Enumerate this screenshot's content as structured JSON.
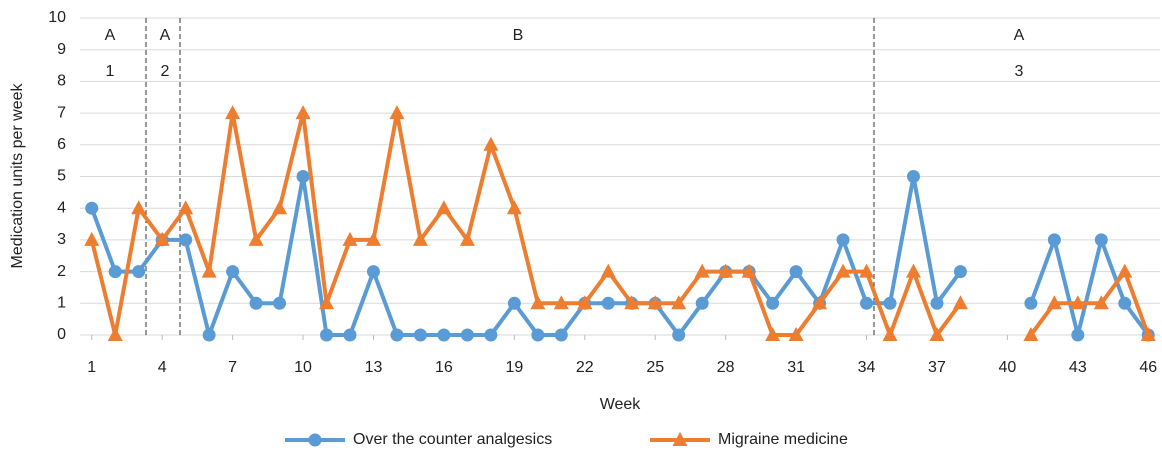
{
  "chart_data": {
    "type": "line",
    "xlabel": "Week",
    "ylabel": "Medication units per week",
    "x": [
      1,
      2,
      3,
      4,
      5,
      6,
      7,
      8,
      9,
      10,
      11,
      12,
      13,
      14,
      15,
      16,
      17,
      18,
      19,
      20,
      21,
      22,
      23,
      24,
      25,
      26,
      27,
      28,
      29,
      30,
      31,
      32,
      33,
      34,
      35,
      36,
      37,
      38,
      39,
      40,
      41,
      42,
      43,
      44,
      45,
      46
    ],
    "xlim": [
      0.5,
      46.5
    ],
    "xticks": [
      1,
      4,
      7,
      10,
      13,
      16,
      19,
      22,
      25,
      28,
      31,
      34,
      37,
      40,
      43,
      46
    ],
    "ylim": [
      0,
      10
    ],
    "yticks": [
      0,
      1,
      2,
      3,
      4,
      5,
      6,
      7,
      8,
      9,
      10
    ],
    "grid": true,
    "legend": "bottom",
    "series": [
      {
        "name": "Over the counter analgesics",
        "color": "#5b9bd5",
        "marker": "circle",
        "values": [
          4,
          2,
          2,
          3,
          3,
          0,
          2,
          1,
          1,
          5,
          0,
          0,
          2,
          0,
          0,
          0,
          0,
          0,
          1,
          0,
          0,
          1,
          1,
          1,
          1,
          0,
          1,
          2,
          2,
          1,
          2,
          1,
          3,
          1,
          1,
          5,
          1,
          2,
          null,
          null,
          1,
          3,
          0,
          3,
          1,
          0
        ]
      },
      {
        "name": "Migraine medicine",
        "color": "#ed7d31",
        "marker": "triangle",
        "values": [
          3,
          0,
          4,
          3,
          4,
          2,
          7,
          3,
          4,
          7,
          1,
          3,
          3,
          7,
          3,
          4,
          3,
          6,
          4,
          1,
          1,
          1,
          2,
          1,
          1,
          1,
          2,
          2,
          2,
          0,
          0,
          1,
          2,
          2,
          0,
          2,
          0,
          1,
          null,
          null,
          0,
          1,
          1,
          1,
          2,
          0
        ]
      }
    ],
    "phases": [
      {
        "label": "A",
        "number": "1"
      },
      {
        "label": "A",
        "number": "2"
      },
      {
        "label": "B"
      },
      {
        "label": "A",
        "number": "3"
      }
    ]
  }
}
